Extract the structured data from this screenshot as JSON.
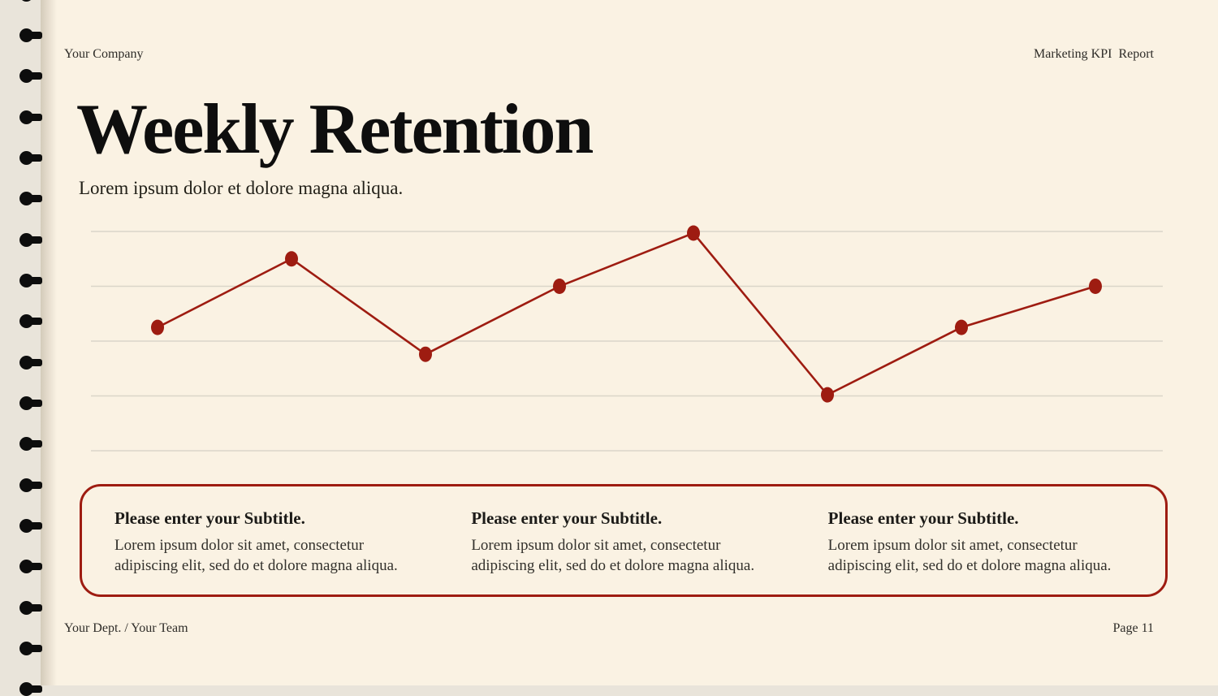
{
  "page": {
    "background": "#FAF2E3",
    "binding_strip_color": "#E9E4DA",
    "accent_color": "#9E1C11"
  },
  "binding": {
    "clip_count": 18,
    "clip_color": "#0D0D0D"
  },
  "header": {
    "company": "Your Company",
    "report": "Marketing KPI  Report"
  },
  "slide": {
    "title": "Weekly Retention",
    "subtitle": "Lorem ipsum dolor et dolore magna aliqua."
  },
  "chart_data": {
    "type": "line",
    "title": "Weekly Retention",
    "xlabel": "",
    "ylabel": "",
    "x": [
      1,
      2,
      3,
      4,
      5,
      6,
      7,
      8
    ],
    "values": [
      2.25,
      3.5,
      1.76,
      3.0,
      3.97,
      1.02,
      2.25,
      3.0
    ],
    "ylim": [
      0,
      4
    ],
    "num_gridlines": 5,
    "grid": "horizontal only",
    "tick_labels_visible": false,
    "legend": "none",
    "line_color": "#9E1C11",
    "marker_color": "#9E1C11",
    "grid_color": "#DAD5C9"
  },
  "info_box": {
    "columns": [
      {
        "heading": "Please enter your Subtitle.",
        "body": "Lorem ipsum dolor sit amet, consectetur adipiscing elit, sed do et dolore magna aliqua."
      },
      {
        "heading": "Please enter your Subtitle.",
        "body": "Lorem ipsum dolor sit amet, consectetur adipiscing elit, sed do et dolore magna aliqua."
      },
      {
        "heading": "Please enter your Subtitle.",
        "body": "Lorem ipsum dolor sit amet, consectetur adipiscing elit, sed do et dolore magna aliqua."
      }
    ]
  },
  "footer": {
    "left": "Your Dept. / Your Team",
    "right": "Page 11"
  }
}
